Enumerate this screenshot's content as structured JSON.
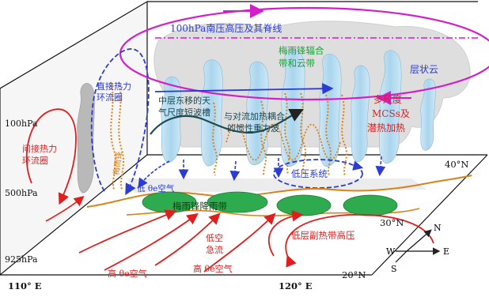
{
  "labels": {
    "hpa100_high": "100hPa南压高压及其脊线",
    "meiyu_cloud_1": "梅雨锋辐合",
    "meiyu_cloud_2": "带和云带",
    "stratiform": "层状云",
    "direct_circ_1": "直接热力",
    "direct_circ_2": "环流圈",
    "mid_wave_1": "中层东移的天",
    "mid_wave_2": "气尺度短波槽",
    "coupling_1": "与对流加热耦合",
    "coupling_2": "的惯性重力波",
    "mcs_1": "多尺度",
    "mcs_2": "MCSs及",
    "mcs_3": "潜热加热",
    "indirect_1": "间接热力",
    "indirect_2": "环流圈",
    "front": "梅雨锋",
    "low_theta": "低 θe空气",
    "low_pressure": "低压系统",
    "rainband": "梅雨锋降雨带",
    "high_theta_1": "高 θe空气",
    "llj_1": "低空",
    "llj_2": "急流",
    "high_theta_2": "高 θe空气",
    "subtropical_high": "低层副热带高压"
  },
  "axis": {
    "p100": "100hPa",
    "p500": "500hPa",
    "p925": "925hPa",
    "lon110": "110° E",
    "lon120": "120° E",
    "lat40": "40°N",
    "lat30": "30°N",
    "lat20": "20°N"
  },
  "compass": {
    "n": "N",
    "e": "E",
    "w": "W",
    "s": "S"
  }
}
